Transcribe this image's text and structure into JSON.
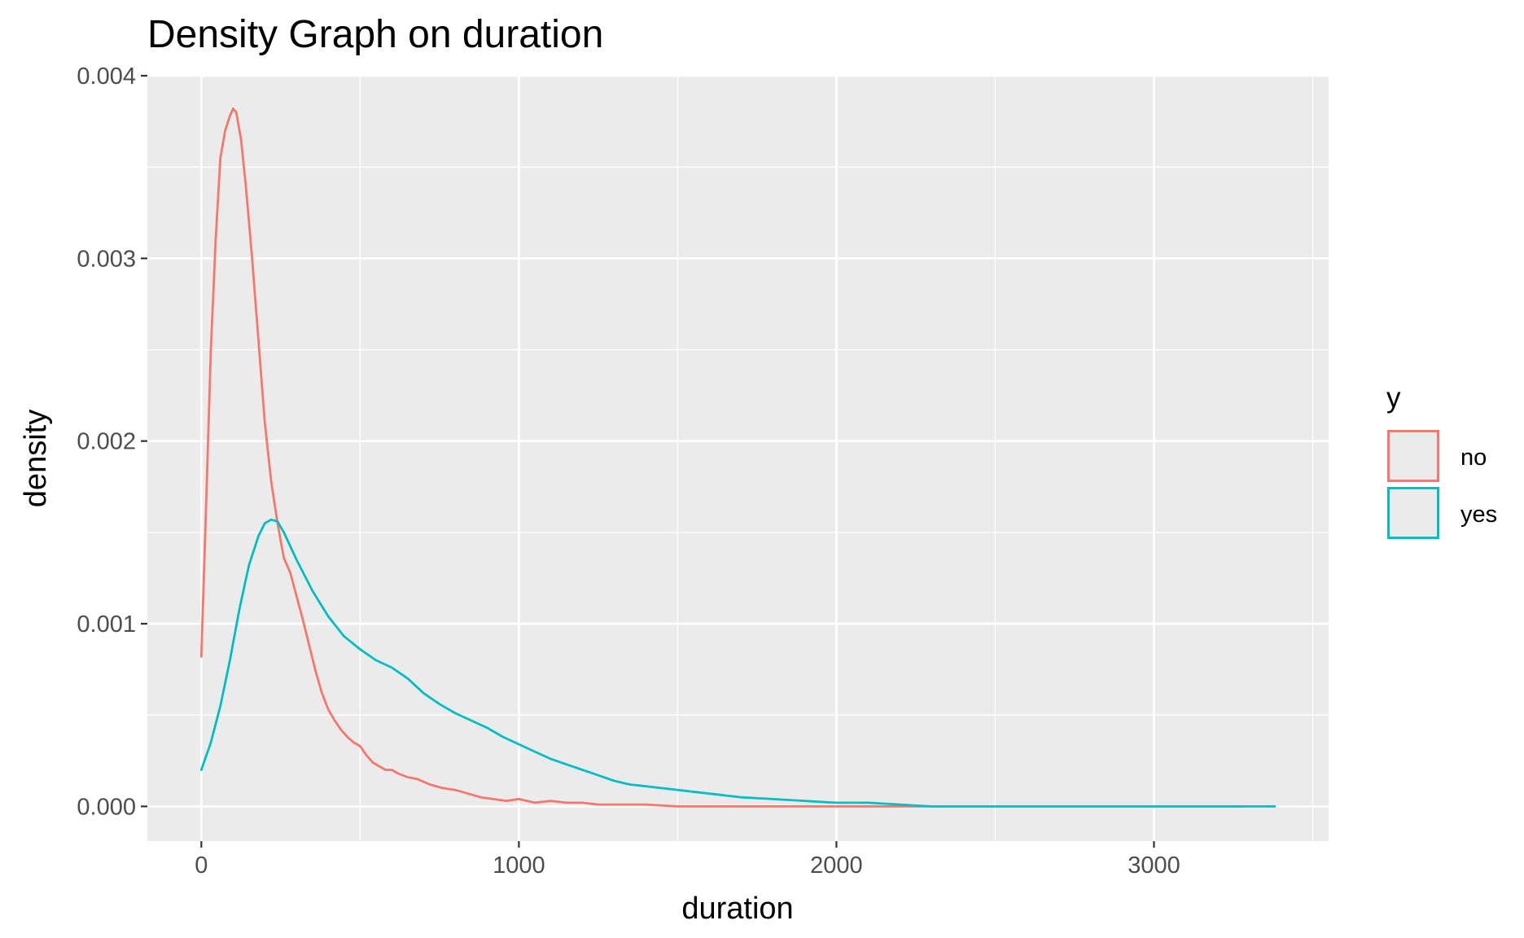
{
  "chart_data": {
    "type": "line",
    "title": "Density Graph on duration",
    "xlabel": "duration",
    "ylabel": "density",
    "xlim": [
      -170,
      3550
    ],
    "ylim": [
      -0.00019,
      0.004
    ],
    "x_ticks": [
      0,
      1000,
      2000,
      3000
    ],
    "x_tick_labels": [
      "0",
      "1000",
      "2000",
      "3000"
    ],
    "y_ticks": [
      0,
      0.001,
      0.002,
      0.003,
      0.004
    ],
    "y_tick_labels": [
      "0.000",
      "0.001",
      "0.002",
      "0.003",
      "0.004"
    ],
    "x_minor_ticks": [
      500,
      1500,
      2500,
      3500
    ],
    "y_minor_ticks": [
      0.0005,
      0.0015,
      0.0025,
      0.0035
    ],
    "grid": true,
    "panel_background": "#ebebeb",
    "legend": {
      "title": "y",
      "position": "right",
      "entries": [
        {
          "label": "no",
          "color": "#f8766d"
        },
        {
          "label": "yes",
          "color": "#00bfc4"
        }
      ]
    },
    "series": [
      {
        "name": "no",
        "color": "#f8766d",
        "x": [
          0,
          15,
          30,
          45,
          60,
          75,
          90,
          100,
          110,
          125,
          140,
          160,
          180,
          200,
          220,
          240,
          260,
          280,
          300,
          320,
          340,
          360,
          380,
          400,
          420,
          440,
          460,
          480,
          500,
          520,
          540,
          560,
          580,
          600,
          620,
          650,
          680,
          720,
          760,
          800,
          840,
          880,
          920,
          960,
          1000,
          1050,
          1100,
          1150,
          1200,
          1250,
          1300,
          1350,
          1400,
          1500,
          1600,
          1700,
          1800,
          1900,
          2000,
          2100,
          2200,
          2300,
          2500,
          2800,
          3000,
          3282
        ],
        "y": [
          0.00082,
          0.00165,
          0.0025,
          0.0031,
          0.00355,
          0.0037,
          0.00378,
          0.00382,
          0.0038,
          0.00365,
          0.0034,
          0.003,
          0.00255,
          0.0021,
          0.00178,
          0.00155,
          0.00136,
          0.00128,
          0.00115,
          0.00102,
          0.00088,
          0.00074,
          0.00062,
          0.00053,
          0.00047,
          0.00042,
          0.00038,
          0.00035,
          0.00033,
          0.00028,
          0.00024,
          0.00022,
          0.0002,
          0.0002,
          0.00018,
          0.00016,
          0.00015,
          0.00012,
          0.0001,
          9e-05,
          7e-05,
          5e-05,
          4e-05,
          3e-05,
          4e-05,
          2e-05,
          3e-05,
          2e-05,
          2e-05,
          1e-05,
          1e-05,
          1e-05,
          1e-05,
          0.0,
          0.0,
          0.0,
          0.0,
          0.0,
          0.0,
          0.0,
          0.0,
          0.0,
          0.0,
          0.0,
          0.0,
          0.0
        ]
      },
      {
        "name": "yes",
        "color": "#00bfc4",
        "x": [
          0,
          30,
          60,
          90,
          120,
          150,
          180,
          200,
          220,
          240,
          260,
          300,
          350,
          400,
          450,
          500,
          550,
          600,
          650,
          700,
          750,
          800,
          850,
          900,
          950,
          1000,
          1050,
          1100,
          1150,
          1200,
          1250,
          1300,
          1350,
          1400,
          1450,
          1500,
          1600,
          1700,
          1800,
          1900,
          2000,
          2100,
          2200,
          2300,
          2500,
          2700,
          3000,
          3200,
          3380
        ],
        "y": [
          0.0002,
          0.00035,
          0.00055,
          0.0008,
          0.00108,
          0.00132,
          0.00148,
          0.00155,
          0.00157,
          0.00156,
          0.0015,
          0.00135,
          0.00118,
          0.00104,
          0.00093,
          0.00086,
          0.0008,
          0.00076,
          0.0007,
          0.00062,
          0.00056,
          0.00051,
          0.00047,
          0.00043,
          0.00038,
          0.00034,
          0.0003,
          0.00026,
          0.00023,
          0.0002,
          0.00017,
          0.00014,
          0.00012,
          0.00011,
          0.0001,
          9e-05,
          7e-05,
          5e-05,
          4e-05,
          3e-05,
          2e-05,
          2e-05,
          1e-05,
          0.0,
          0.0,
          0.0,
          0.0,
          0.0,
          0.0
        ]
      }
    ]
  }
}
